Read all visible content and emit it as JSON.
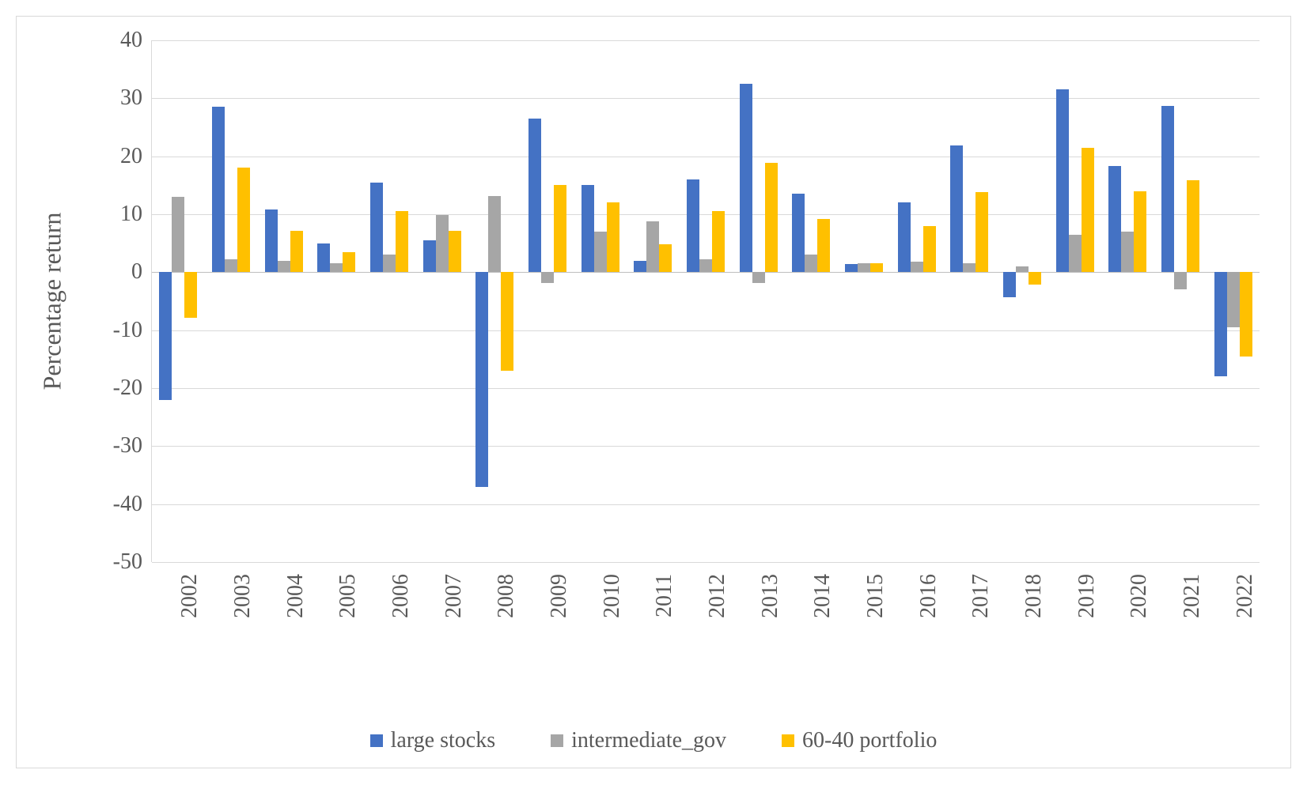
{
  "chart": {
    "type": "bar",
    "yaxis_title": "Percentage return",
    "ylim": [
      -50,
      40
    ],
    "ytick_step": 10,
    "yticks": [
      -50,
      -40,
      -30,
      -20,
      -10,
      0,
      10,
      20,
      30,
      40
    ],
    "grid_color": "#d9d9d9",
    "zero_line_color": "#bfbfbf",
    "background_color": "#ffffff",
    "axis_label_color": "#595959",
    "axis_label_fontsize": 28,
    "yaxis_title_fontsize": 32,
    "legend_fontsize": 28,
    "bar_cluster_width": 0.72,
    "categories": [
      "2002",
      "2003",
      "2004",
      "2005",
      "2006",
      "2007",
      "2008",
      "2009",
      "2010",
      "2011",
      "2012",
      "2013",
      "2014",
      "2015",
      "2016",
      "2017",
      "2018",
      "2019",
      "2020",
      "2021",
      "2022"
    ],
    "series": [
      {
        "name": "large stocks",
        "color": "#4472c4",
        "values": [
          -22,
          28.5,
          10.8,
          5,
          15.5,
          5.5,
          -37,
          26.5,
          15,
          2,
          16,
          32.5,
          13.5,
          1.4,
          12,
          21.8,
          -4.3,
          31.5,
          18.3,
          28.7,
          -18
        ]
      },
      {
        "name": "intermediate_gov",
        "color": "#a6a6a6",
        "values": [
          13,
          2.2,
          2,
          1.5,
          3,
          9.8,
          13.2,
          -1.8,
          7,
          8.8,
          2.2,
          -1.8,
          3,
          1.5,
          1.8,
          1.5,
          1,
          6.5,
          7,
          -3,
          -9.5
        ]
      },
      {
        "name": "60-40 portfolio",
        "color": "#ffc000",
        "values": [
          -7.8,
          18,
          7.2,
          3.5,
          10.5,
          7.2,
          -17,
          15,
          12,
          4.8,
          10.5,
          18.8,
          9.2,
          1.5,
          8,
          13.8,
          -2.2,
          21.5,
          14,
          15.8,
          -14.5
        ]
      }
    ]
  }
}
